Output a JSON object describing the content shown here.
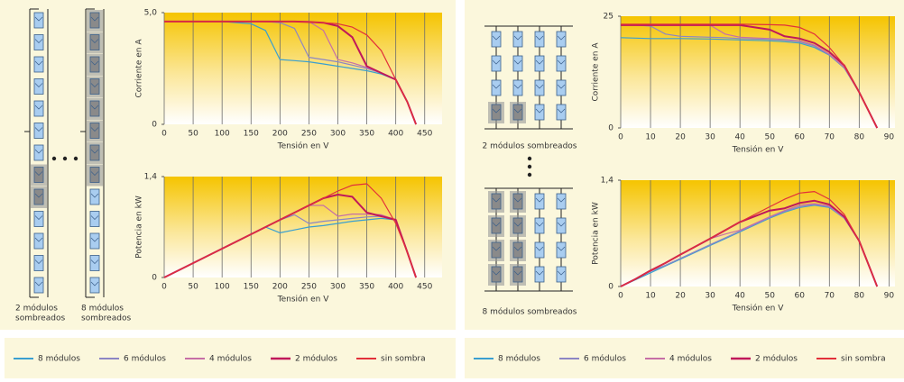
{
  "chart_data": [
    {
      "type": "line",
      "xlabel": "Tensión en V",
      "ylabel": "Corriente en A",
      "x": [
        0,
        50,
        100,
        150,
        175,
        200,
        225,
        250,
        275,
        300,
        325,
        350,
        375,
        400,
        420,
        435
      ],
      "xlim": [
        0,
        480
      ],
      "xticks": [
        0,
        50,
        100,
        150,
        200,
        250,
        300,
        350,
        400,
        450
      ],
      "ylim": [
        0,
        5
      ],
      "yticks": [
        0,
        {
          "value": 5,
          "label": "5,0"
        }
      ],
      "grid": true,
      "series": [
        {
          "name": "8 módulos",
          "color": "#3a9fd0",
          "values": [
            4.6,
            4.6,
            4.6,
            4.5,
            4.2,
            2.9,
            2.85,
            2.8,
            2.7,
            2.6,
            2.5,
            2.4,
            2.25,
            2.0,
            1.0,
            0
          ]
        },
        {
          "name": "6 módulos",
          "color": "#8c86c4",
          "values": [
            4.6,
            4.6,
            4.6,
            4.6,
            4.6,
            4.55,
            4.3,
            3.0,
            2.9,
            2.8,
            2.65,
            2.5,
            2.3,
            2.0,
            1.0,
            0
          ]
        },
        {
          "name": "4 módulos",
          "color": "#c66fa6",
          "values": [
            4.6,
            4.6,
            4.6,
            4.6,
            4.6,
            4.6,
            4.6,
            4.6,
            4.2,
            2.9,
            2.75,
            2.55,
            2.3,
            2.0,
            1.0,
            0
          ]
        },
        {
          "name": "2 módulos",
          "color": "#c0185a",
          "values": [
            4.6,
            4.6,
            4.6,
            4.6,
            4.6,
            4.6,
            4.6,
            4.58,
            4.55,
            4.4,
            3.9,
            2.6,
            2.3,
            2.0,
            1.0,
            0
          ]
        },
        {
          "name": "sin sombra",
          "color": "#e2303a",
          "values": [
            4.6,
            4.6,
            4.6,
            4.6,
            4.6,
            4.6,
            4.6,
            4.58,
            4.55,
            4.5,
            4.35,
            4.0,
            3.3,
            2.0,
            1.0,
            0
          ]
        }
      ]
    },
    {
      "type": "line",
      "xlabel": "Tensión en V",
      "ylabel": "Potencia en kW",
      "x": [
        0,
        50,
        100,
        150,
        175,
        200,
        225,
        250,
        275,
        300,
        325,
        350,
        375,
        400,
        420,
        435
      ],
      "xlim": [
        0,
        480
      ],
      "xticks": [
        0,
        50,
        100,
        150,
        200,
        250,
        300,
        350,
        400,
        450
      ],
      "ylim": [
        0,
        1.4
      ],
      "yticks": [
        0,
        {
          "value": 1.4,
          "label": "1,4"
        }
      ],
      "grid": true,
      "series": [
        {
          "color": "#3a9fd0",
          "values": [
            0,
            0.2,
            0.4,
            0.6,
            0.7,
            0.62,
            0.66,
            0.7,
            0.72,
            0.75,
            0.78,
            0.8,
            0.82,
            0.8,
            0.35,
            0
          ]
        },
        {
          "color": "#8c86c4",
          "values": [
            0,
            0.2,
            0.4,
            0.6,
            0.7,
            0.8,
            0.87,
            0.75,
            0.78,
            0.8,
            0.82,
            0.84,
            0.85,
            0.8,
            0.35,
            0
          ]
        },
        {
          "color": "#c66fa6",
          "values": [
            0,
            0.2,
            0.4,
            0.6,
            0.7,
            0.8,
            0.9,
            1.0,
            1.0,
            0.85,
            0.88,
            0.88,
            0.87,
            0.8,
            0.35,
            0
          ]
        },
        {
          "color": "#c0185a",
          "values": [
            0,
            0.2,
            0.4,
            0.6,
            0.7,
            0.8,
            0.9,
            1.0,
            1.1,
            1.15,
            1.12,
            0.9,
            0.85,
            0.8,
            0.35,
            0
          ]
        },
        {
          "color": "#e2303a",
          "values": [
            0,
            0.2,
            0.4,
            0.6,
            0.7,
            0.8,
            0.9,
            1.0,
            1.1,
            1.2,
            1.28,
            1.3,
            1.1,
            0.75,
            0.35,
            0
          ]
        }
      ]
    },
    {
      "type": "line",
      "xlabel": "Tensión en V",
      "ylabel": "Corriente en A",
      "x": [
        0,
        5,
        10,
        15,
        20,
        30,
        35,
        40,
        50,
        55,
        60,
        65,
        70,
        75,
        80,
        83,
        86
      ],
      "xlim": [
        0,
        92
      ],
      "xticks": [
        0,
        10,
        20,
        30,
        40,
        50,
        60,
        70,
        80,
        90
      ],
      "ylim": [
        0,
        25
      ],
      "yticks": [
        0,
        25
      ],
      "grid": true,
      "series": [
        {
          "name": "8 módulos",
          "color": "#3a9fd0",
          "values": [
            20.2,
            20.1,
            20,
            20,
            20,
            19.9,
            19.8,
            19.7,
            19.5,
            19.3,
            19,
            18,
            16.3,
            13.4,
            8,
            4,
            0
          ]
        },
        {
          "name": "6 módulos",
          "color": "#8c86c4",
          "values": [
            23,
            23,
            22.8,
            21,
            20.5,
            20.3,
            20.2,
            20,
            19.8,
            19.6,
            19.3,
            18.3,
            16.4,
            13.5,
            8,
            4,
            0
          ]
        },
        {
          "name": "4 módulos",
          "color": "#c66fa6",
          "values": [
            23,
            23,
            23,
            23,
            23,
            23,
            21,
            20.3,
            20,
            19.8,
            19.5,
            18.5,
            16.5,
            13.5,
            8,
            4,
            0
          ]
        },
        {
          "name": "2 módulos",
          "color": "#c0185a",
          "values": [
            23,
            23,
            23,
            23,
            23,
            23,
            23,
            23,
            22,
            20.5,
            20,
            19,
            17,
            14,
            8,
            4,
            0
          ]
        },
        {
          "name": "sin sombra",
          "color": "#e2303a",
          "values": [
            23.2,
            23.2,
            23.2,
            23.2,
            23.2,
            23.2,
            23.2,
            23.2,
            23.1,
            23,
            22.5,
            21,
            18,
            14,
            8,
            4,
            0
          ]
        }
      ]
    },
    {
      "type": "line",
      "xlabel": "Tensión en V",
      "ylabel": "Potencia en kW",
      "x": [
        0,
        5,
        10,
        15,
        20,
        30,
        35,
        40,
        50,
        55,
        60,
        65,
        70,
        75,
        80,
        83,
        86
      ],
      "xlim": [
        0,
        92
      ],
      "xticks": [
        0,
        10,
        20,
        30,
        40,
        50,
        60,
        70,
        80,
        90
      ],
      "ylim": [
        0,
        1.4
      ],
      "yticks": [
        0,
        {
          "value": 1.4,
          "label": "1,4"
        }
      ],
      "grid": true,
      "series": [
        {
          "color": "#3a9fd0",
          "values": [
            0,
            0.09,
            0.18,
            0.27,
            0.36,
            0.54,
            0.63,
            0.72,
            0.9,
            0.98,
            1.04,
            1.07,
            1.04,
            0.9,
            0.6,
            0.3,
            0
          ]
        },
        {
          "color": "#8c86c4",
          "values": [
            0,
            0.1,
            0.2,
            0.28,
            0.37,
            0.55,
            0.64,
            0.73,
            0.91,
            0.99,
            1.05,
            1.08,
            1.05,
            0.9,
            0.6,
            0.3,
            0
          ]
        },
        {
          "color": "#c66fa6",
          "values": [
            0,
            0.1,
            0.21,
            0.31,
            0.42,
            0.63,
            0.69,
            0.74,
            0.92,
            1.0,
            1.07,
            1.09,
            1.06,
            0.91,
            0.6,
            0.3,
            0
          ]
        },
        {
          "color": "#c0185a",
          "values": [
            0,
            0.1,
            0.21,
            0.31,
            0.42,
            0.63,
            0.74,
            0.85,
            1.0,
            1.03,
            1.1,
            1.13,
            1.08,
            0.92,
            0.6,
            0.3,
            0
          ]
        },
        {
          "color": "#e2303a",
          "values": [
            0,
            0.1,
            0.21,
            0.31,
            0.42,
            0.63,
            0.74,
            0.85,
            1.05,
            1.15,
            1.23,
            1.25,
            1.15,
            0.95,
            0.6,
            0.3,
            0
          ]
        }
      ]
    }
  ],
  "diagrams": {
    "left_captions": [
      [
        "2 módulos",
        "sombreados"
      ],
      [
        "8 módulos",
        "sombreados"
      ]
    ],
    "right_captions": [
      "2 módulos sombreados",
      "8 módulos sombreados"
    ]
  }
}
